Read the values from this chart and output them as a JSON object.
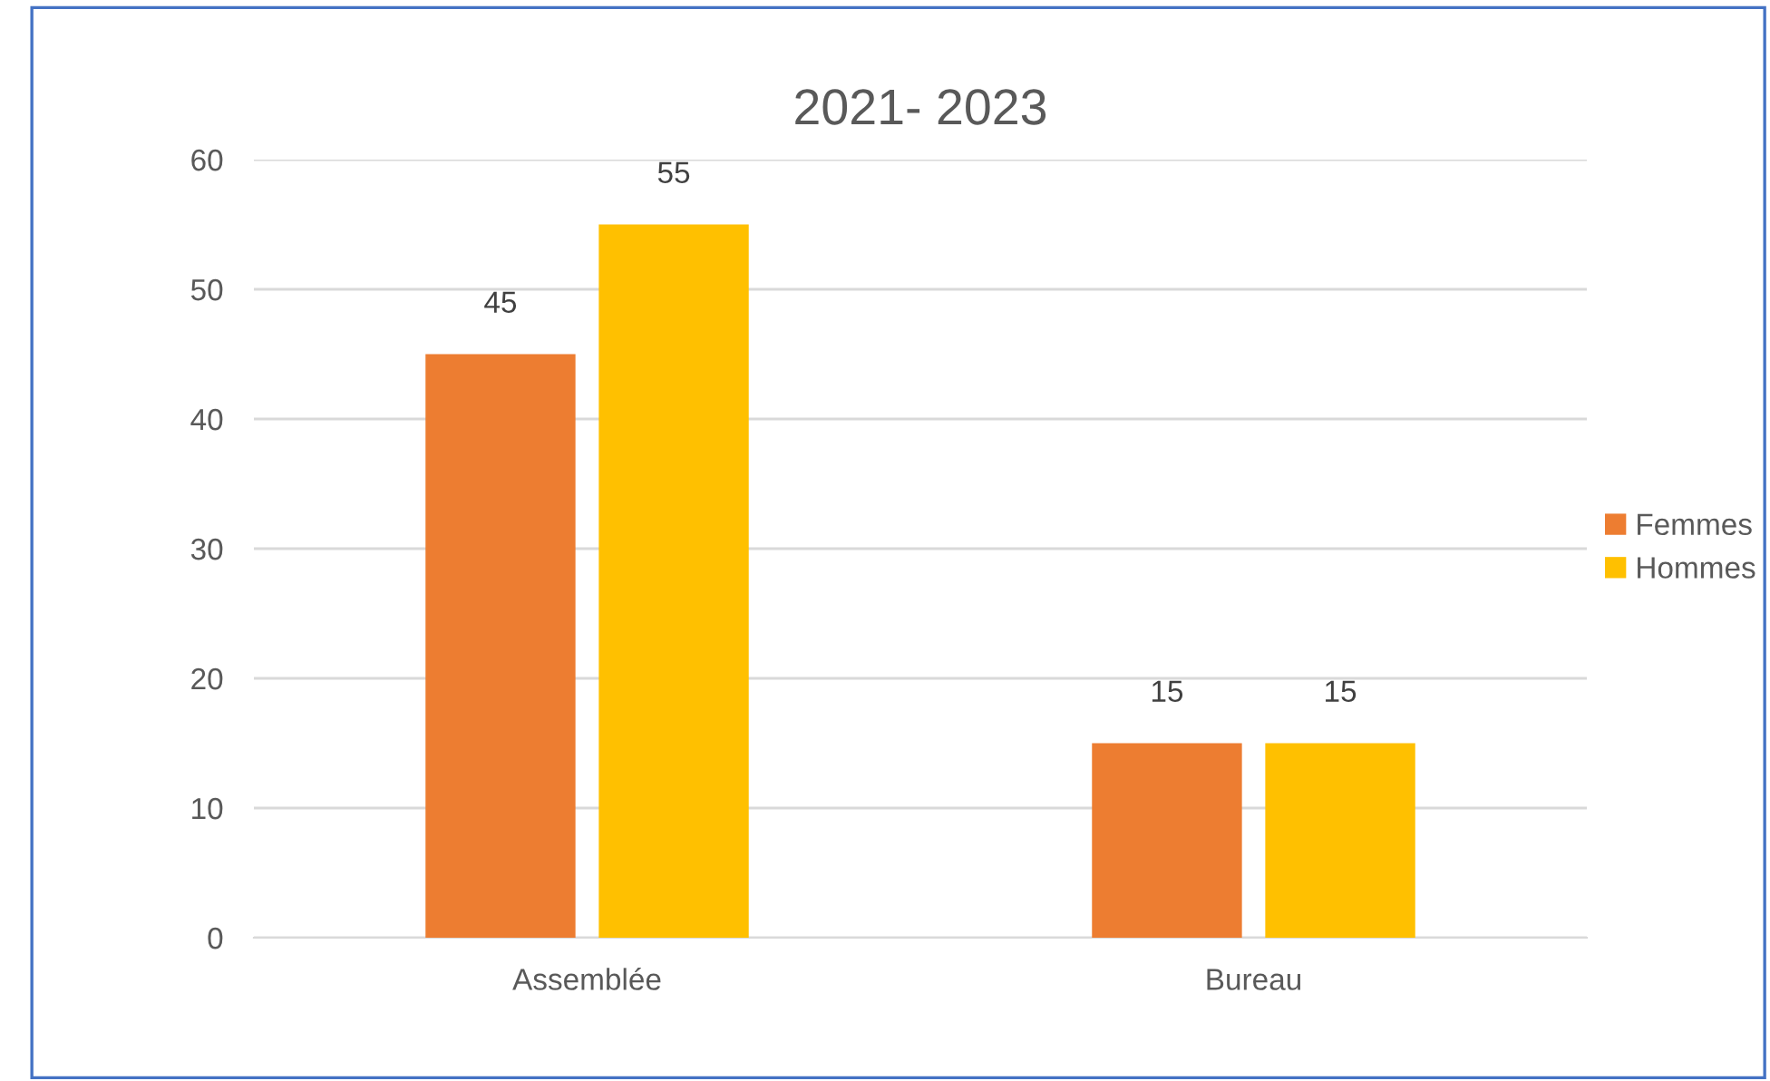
{
  "chart_data": {
    "type": "bar",
    "title": "2021- 2023",
    "categories": [
      "Assemblée",
      "Bureau"
    ],
    "series": [
      {
        "name": "Femmes",
        "color": "#ed7d31",
        "values": [
          45,
          15
        ]
      },
      {
        "name": "Hommes",
        "color": "#ffc000",
        "values": [
          55,
          15
        ]
      }
    ],
    "ylim": [
      0,
      60
    ],
    "yticks": [
      0,
      10,
      20,
      30,
      40,
      50,
      60
    ],
    "grid": "y",
    "legend": "right",
    "data_labels": true
  }
}
